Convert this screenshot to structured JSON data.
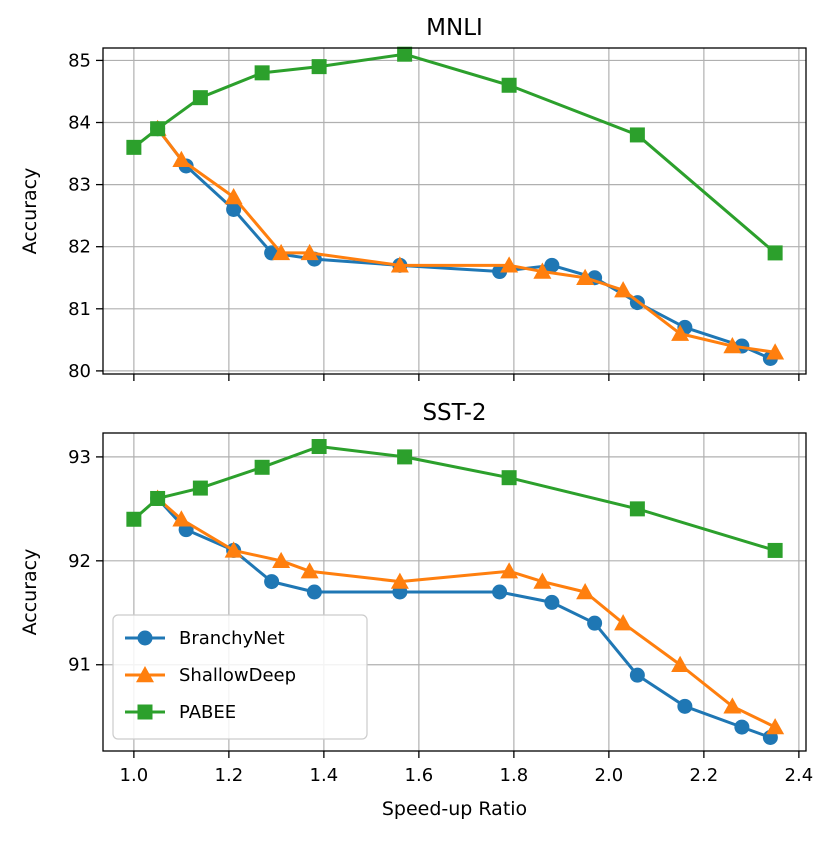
{
  "chart_data": [
    {
      "type": "line",
      "title": "MNLI",
      "xlabel": "",
      "ylabel": "Accuracy",
      "xlim": [
        0.935,
        2.415
      ],
      "ylim": [
        79.95,
        85.2
      ],
      "xticks": [
        1.0,
        1.2,
        1.4,
        1.6,
        1.8,
        2.0,
        2.2,
        2.4
      ],
      "xticklabels": [
        "",
        "",
        "",
        "",
        "",
        "",
        "",
        ""
      ],
      "yticks": [
        80,
        81,
        82,
        83,
        84,
        85
      ],
      "yticklabels": [
        "80",
        "81",
        "82",
        "83",
        "84",
        "85"
      ],
      "grid": true,
      "series": [
        {
          "name": "BranchyNet",
          "color": "#1f77b4",
          "marker": "circle",
          "x": [
            1.05,
            1.11,
            1.21,
            1.29,
            1.38,
            1.56,
            1.77,
            1.88,
            1.97,
            2.06,
            2.16,
            2.28,
            2.34
          ],
          "y": [
            83.9,
            83.3,
            82.6,
            81.9,
            81.8,
            81.7,
            81.6,
            81.7,
            81.5,
            81.1,
            80.7,
            80.4,
            80.2
          ]
        },
        {
          "name": "ShallowDeep",
          "color": "#ff7f0e",
          "marker": "triangle",
          "x": [
            1.05,
            1.1,
            1.21,
            1.31,
            1.37,
            1.56,
            1.79,
            1.86,
            1.95,
            2.03,
            2.15,
            2.26,
            2.35
          ],
          "y": [
            83.9,
            83.4,
            82.8,
            81.9,
            81.9,
            81.7,
            81.7,
            81.6,
            81.5,
            81.3,
            80.6,
            80.4,
            80.3
          ]
        },
        {
          "name": "PABEE",
          "color": "#2ca02c",
          "marker": "square",
          "x": [
            1.0,
            1.05,
            1.14,
            1.27,
            1.39,
            1.57,
            1.79,
            2.06,
            2.35
          ],
          "y": [
            83.6,
            83.9,
            84.4,
            84.8,
            84.9,
            85.1,
            84.6,
            83.8,
            81.9
          ]
        }
      ]
    },
    {
      "type": "line",
      "title": "SST-2",
      "xlabel": "Speed-up Ratio",
      "ylabel": "Accuracy",
      "xlim": [
        0.935,
        2.415
      ],
      "ylim": [
        90.17,
        93.23
      ],
      "xticks": [
        1.0,
        1.2,
        1.4,
        1.6,
        1.8,
        2.0,
        2.2,
        2.4
      ],
      "xticklabels": [
        "1.0",
        "1.2",
        "1.4",
        "1.6",
        "1.8",
        "2.0",
        "2.2",
        "2.4"
      ],
      "yticks": [
        91,
        92,
        93
      ],
      "yticklabels": [
        "91",
        "92",
        "93"
      ],
      "grid": true,
      "legend": "lower-left",
      "series": [
        {
          "name": "BranchyNet",
          "color": "#1f77b4",
          "marker": "circle",
          "x": [
            1.05,
            1.11,
            1.21,
            1.29,
            1.38,
            1.56,
            1.77,
            1.88,
            1.97,
            2.06,
            2.16,
            2.28,
            2.34
          ],
          "y": [
            92.6,
            92.3,
            92.1,
            91.8,
            91.7,
            91.7,
            91.7,
            91.6,
            91.4,
            90.9,
            90.6,
            90.4,
            90.3
          ]
        },
        {
          "name": "ShallowDeep",
          "color": "#ff7f0e",
          "marker": "triangle",
          "x": [
            1.05,
            1.1,
            1.21,
            1.31,
            1.37,
            1.56,
            1.79,
            1.86,
            1.95,
            2.03,
            2.15,
            2.26,
            2.35
          ],
          "y": [
            92.6,
            92.4,
            92.1,
            92.0,
            91.9,
            91.8,
            91.9,
            91.8,
            91.7,
            91.4,
            91.0,
            90.6,
            90.4
          ]
        },
        {
          "name": "PABEE",
          "color": "#2ca02c",
          "marker": "square",
          "x": [
            1.0,
            1.05,
            1.14,
            1.27,
            1.39,
            1.57,
            1.79,
            2.06,
            2.35
          ],
          "y": [
            92.4,
            92.6,
            92.7,
            92.9,
            93.1,
            93.0,
            92.8,
            92.5,
            92.1
          ]
        }
      ]
    }
  ]
}
